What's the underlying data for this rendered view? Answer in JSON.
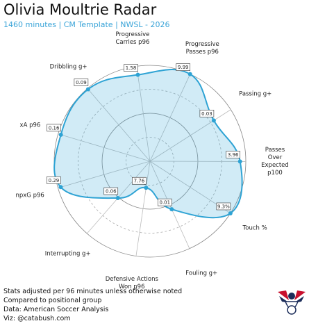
{
  "header": {
    "title": "Olivia Moultrie Radar",
    "subtitle": "1460 minutes | CM Template | NWSL - 2026"
  },
  "chart_data": {
    "type": "radar",
    "categories": [
      "Progressive\nCarries p96",
      "Progressive\nPasses p96",
      "Passing g+",
      "Passes Over\nExpected p100",
      "Touch %",
      "Fouling g+",
      "Defensive Actions\nWon p96",
      "Interrupting g+",
      "npxG p96",
      "xA p96",
      "Dribbling g+"
    ],
    "values": [
      91,
      100,
      79,
      94,
      100,
      55,
      28,
      51,
      97,
      97,
      99
    ],
    "stat_labels": [
      "1.58",
      "9.99",
      "0.03",
      "3.96",
      "9.3%",
      "0.01",
      "7.76",
      "0.06",
      "0.29",
      "0.16",
      "0.09"
    ],
    "color": "#2ea3d4",
    "ylim": [
      0,
      100
    ],
    "yticks": [
      25,
      50,
      75,
      100
    ]
  },
  "footer": {
    "lines": [
      "Stats adjusted per 96 minutes unless otherwise noted",
      "Compared to positional group",
      "Data: American Soccer Analysis",
      "Viz: @catabush.com"
    ]
  }
}
